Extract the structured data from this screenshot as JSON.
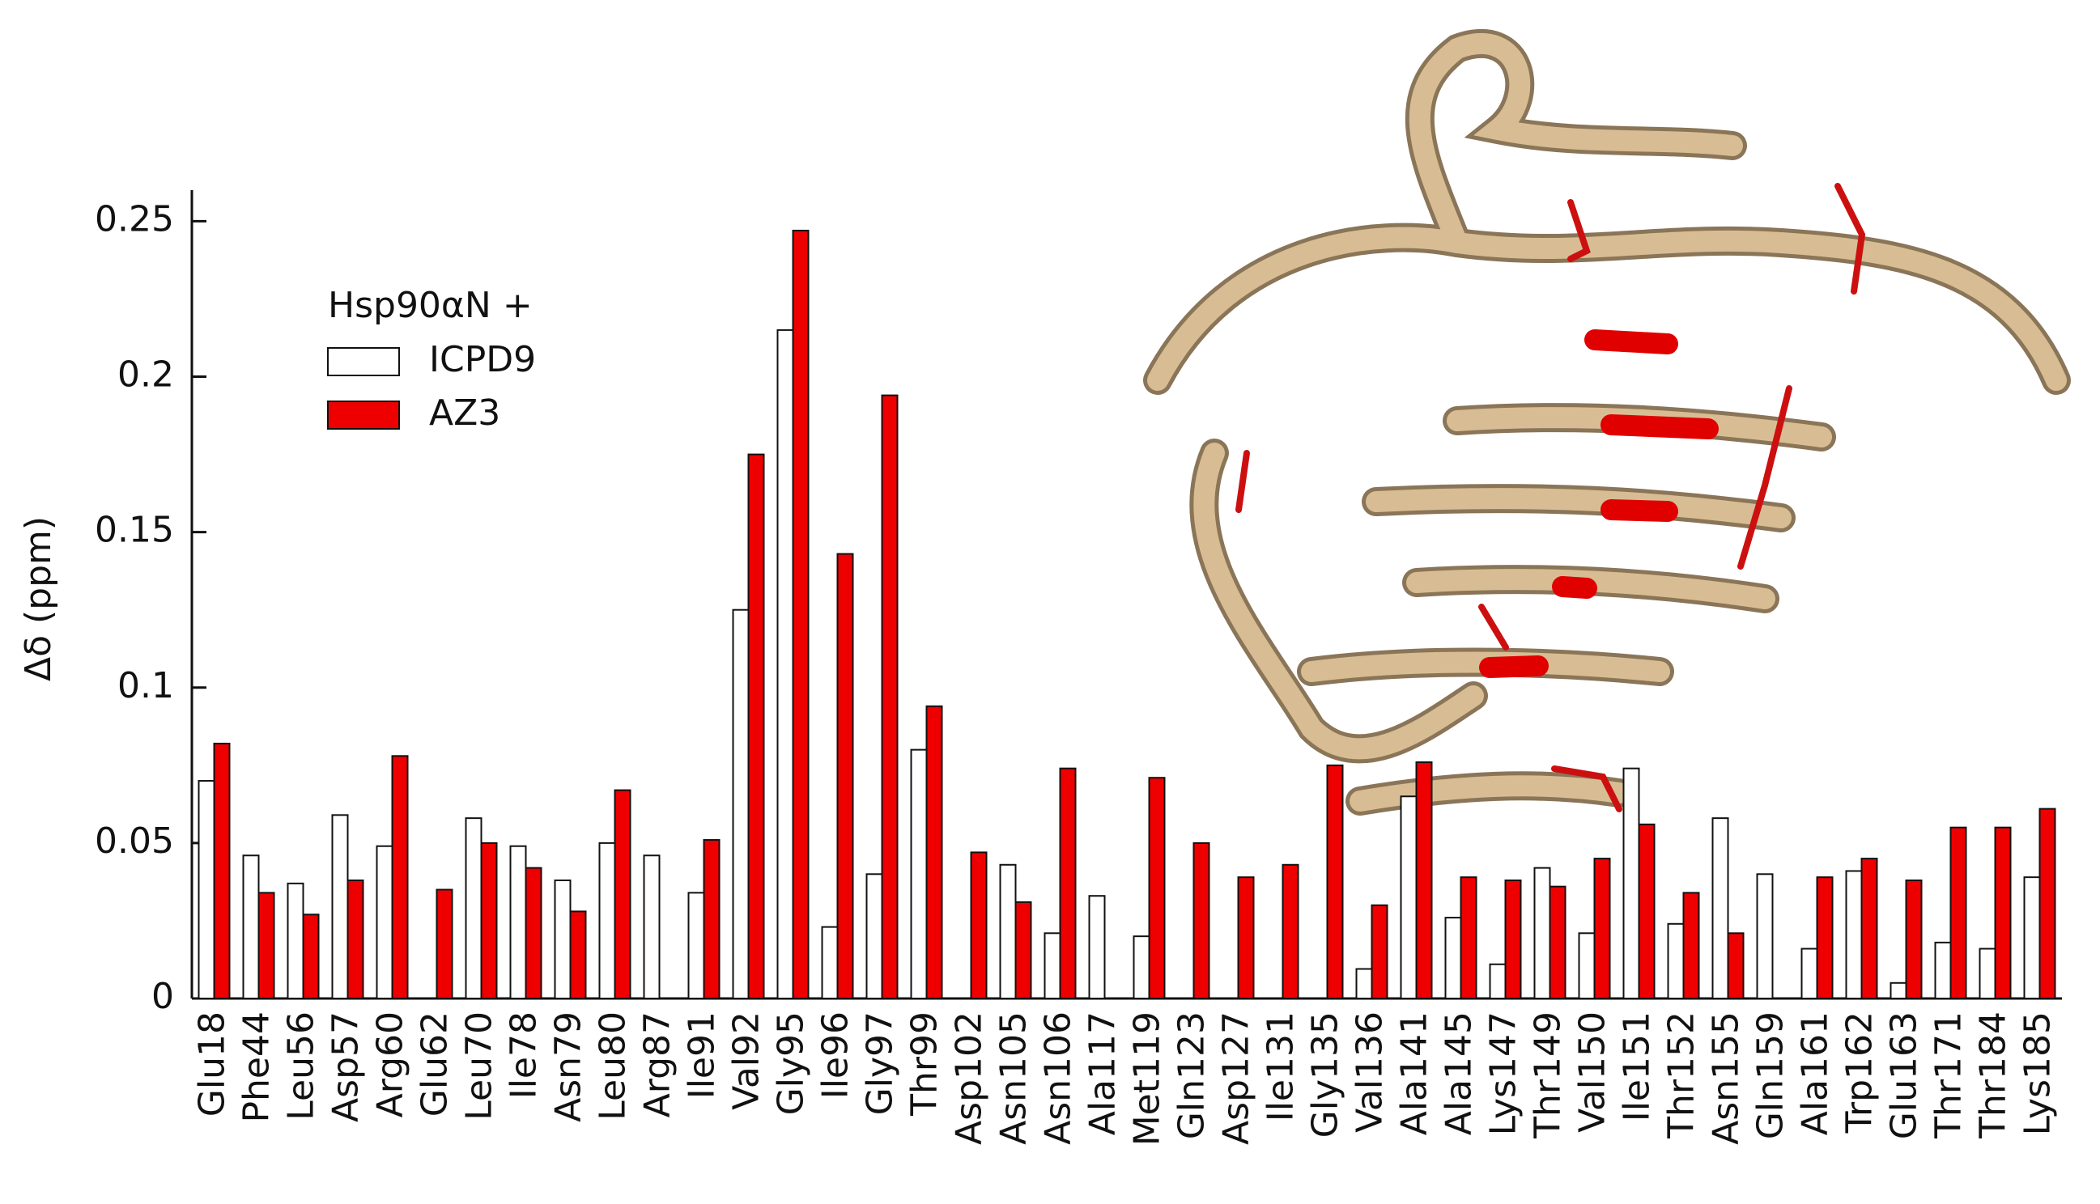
{
  "chart_data": {
    "type": "grouped-bar",
    "y_label": "Δδ (ppm)",
    "legend_title": "Hsp90αN +",
    "categories": [
      "Glu18",
      "Phe44",
      "Leu56",
      "Asp57",
      "Arg60",
      "Glu62",
      "Leu70",
      "Ile78",
      "Asn79",
      "Leu80",
      "Arg87",
      "Ile91",
      "Val92",
      "Gly95",
      "Ile96",
      "Gly97",
      "Thr99",
      "Asp102",
      "Asn105",
      "Asn106",
      "Ala117",
      "Met119",
      "Gln123",
      "Asp127",
      "Ile131",
      "Gly135",
      "Val136",
      "Ala141",
      "Ala145",
      "Lys147",
      "Thr149",
      "Val150",
      "Ile151",
      "Thr152",
      "Asn155",
      "Gln159",
      "Ala161",
      "Trp162",
      "Glu163",
      "Thr171",
      "Thr184",
      "Lys185"
    ],
    "series": [
      {
        "name": "ICPD9",
        "color": "#ffffff",
        "values": [
          0.07,
          0.046,
          0.037,
          0.059,
          0.049,
          0,
          0.058,
          0.049,
          0.038,
          0.05,
          0.046,
          0.034,
          0.125,
          0.215,
          0.023,
          0.04,
          0.08,
          0,
          0.043,
          0.021,
          0.033,
          0.02,
          0,
          0,
          0,
          0,
          0.0095,
          0.065,
          0.026,
          0.011,
          0.042,
          0.021,
          0.074,
          0.024,
          0.058,
          0.04,
          0.016,
          0.041,
          0.005,
          0.018,
          0.016,
          0.039
        ]
      },
      {
        "name": "AZ3",
        "color": "#ee0000",
        "values": [
          0.082,
          0.034,
          0.027,
          0.038,
          0.078,
          0.035,
          0.05,
          0.042,
          0.028,
          0.067,
          0,
          0.051,
          0.175,
          0.247,
          0.143,
          0.194,
          0.094,
          0.047,
          0.031,
          0.074,
          0,
          0.071,
          0.05,
          0.039,
          0.043,
          0.075,
          0.03,
          0.076,
          0.039,
          0.038,
          0.036,
          0.045,
          0.056,
          0.034,
          0.021,
          0,
          0.039,
          0.045,
          0.038,
          0.055,
          0.055,
          0.061
        ]
      }
    ],
    "ylim": [
      0,
      0.26
    ],
    "yticks": [
      0,
      0.05,
      0.1,
      0.15,
      0.2,
      0.25
    ],
    "grid": false
  }
}
